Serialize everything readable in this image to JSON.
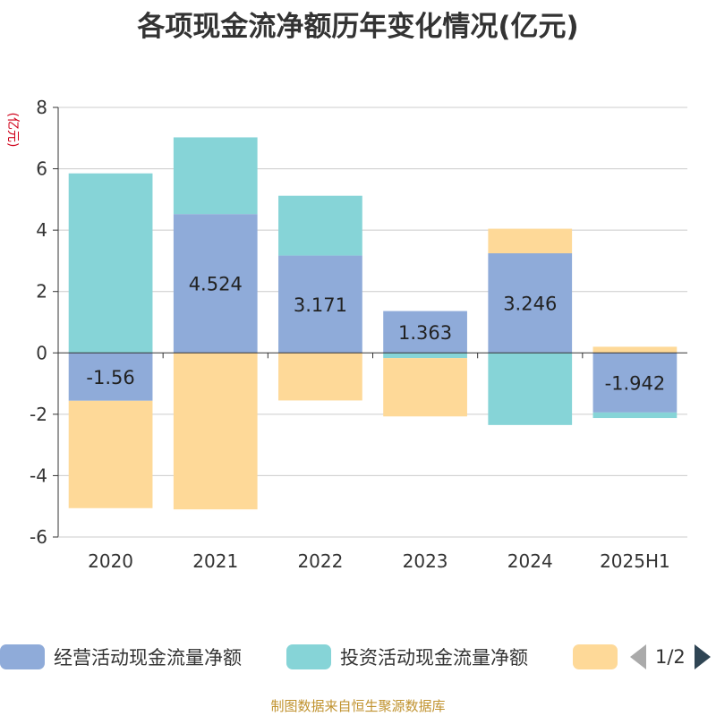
{
  "title": "各项现金流净额历年变化情况(亿元)",
  "source_note": "制图数据来自恒生聚源数据库",
  "legend_pager": "1/2",
  "chart_data": {
    "type": "bar",
    "stacked": true,
    "title": "各项现金流净额历年变化情况(亿元)",
    "ylabel": "(亿元)",
    "xlabel": "",
    "ylim": [
      -6,
      8
    ],
    "yticks": [
      -6,
      -4,
      -2,
      0,
      2,
      4,
      6,
      8
    ],
    "grid": true,
    "legend_position": "bottom",
    "categories": [
      "2020",
      "2021",
      "2022",
      "2023",
      "2024",
      "2025H1"
    ],
    "series": [
      {
        "name": "经营活动现金流量净额",
        "color": "#8fabd9",
        "values": [
          -1.56,
          4.524,
          3.171,
          1.363,
          3.246,
          -1.942
        ],
        "labels": [
          "-1.56",
          "4.524",
          "3.171",
          "1.363",
          "3.246",
          "-1.942"
        ]
      },
      {
        "name": "投资活动现金流量净额",
        "color": "#86d4d7",
        "values": [
          5.85,
          2.5,
          1.95,
          -0.17,
          -2.35,
          -0.18
        ]
      },
      {
        "name": "",
        "color": "#fed998",
        "values": [
          -3.5,
          -5.1,
          -1.55,
          -1.9,
          0.8,
          0.2
        ]
      }
    ]
  }
}
